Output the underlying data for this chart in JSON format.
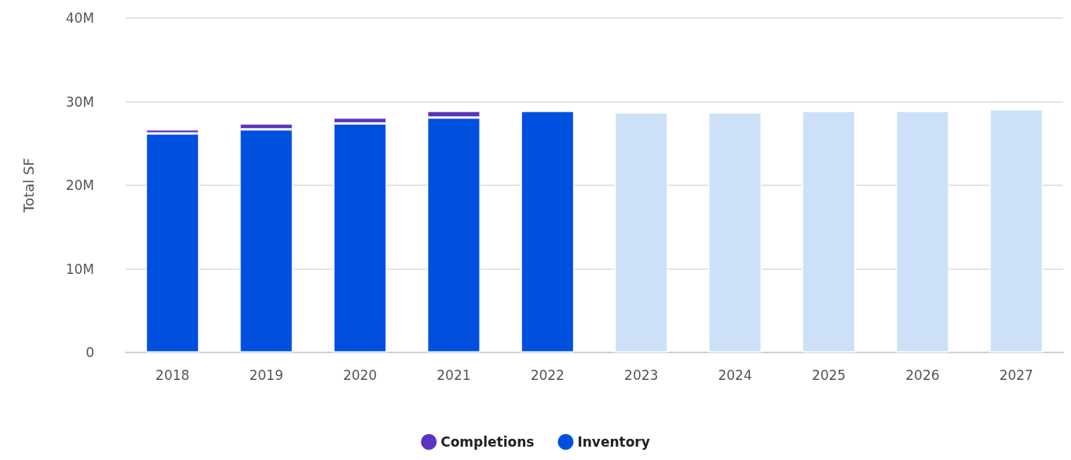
{
  "chart_data": {
    "type": "bar",
    "ylabel": "Total SF",
    "stacked": true,
    "categories": [
      "2018",
      "2019",
      "2020",
      "2021",
      "2022",
      "2023",
      "2024",
      "2025",
      "2026",
      "2027"
    ],
    "series": [
      {
        "name": "Inventory",
        "color": "#0050e0",
        "colors": [
          "#0050e0",
          "#0050e0",
          "#0050e0",
          "#0050e0",
          "#0050e0",
          "#cce1f7",
          "#cce1f7",
          "#cce1f7",
          "#cce1f7",
          "#cce1f7"
        ],
        "values": [
          26.2,
          26.7,
          27.4,
          28.1,
          28.9,
          28.7,
          28.7,
          28.9,
          28.9,
          29.1
        ]
      },
      {
        "name": "Completions",
        "color": "#5c33c2",
        "values": [
          0.5,
          0.7,
          0.7,
          0.8,
          null,
          null,
          null,
          null,
          null,
          null
        ]
      }
    ],
    "ylim": [
      0,
      40
    ],
    "yticks": [
      {
        "value": 0,
        "label": "0"
      },
      {
        "value": 10,
        "label": "10M"
      },
      {
        "value": 20,
        "label": "20M"
      },
      {
        "value": 30,
        "label": "30M"
      },
      {
        "value": 40,
        "label": "40M"
      }
    ],
    "grid": "y",
    "legend": "bottom"
  }
}
